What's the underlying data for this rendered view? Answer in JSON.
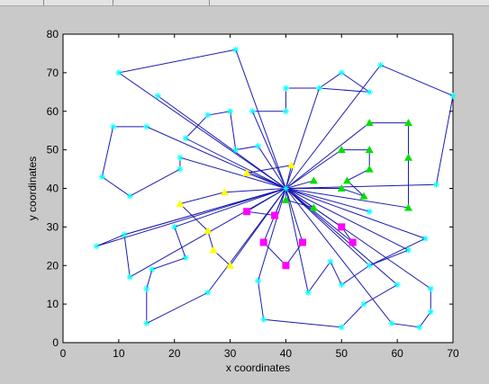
{
  "chart_data": {
    "type": "scatter",
    "title": "",
    "xlabel": "x coordinates",
    "ylabel": "y coordinates",
    "xlim": [
      0,
      70
    ],
    "ylim": [
      0,
      80
    ],
    "xticks": [
      "0",
      "10",
      "20",
      "30",
      "40",
      "50",
      "60",
      "70"
    ],
    "yticks": [
      "0",
      "10",
      "20",
      "30",
      "40",
      "50",
      "60",
      "70",
      "80"
    ],
    "grid": false,
    "legend": "none",
    "colors": {
      "route": "#1b1bb0",
      "customer": "#00ffff",
      "triangle_green": "#00e000",
      "triangle_yellow": "#ffff00",
      "square": "#ff00ff",
      "background": "#c9c9c9",
      "plot_bg": "#ffffff"
    },
    "depot": {
      "x": 40,
      "y": 40
    },
    "customers": [
      {
        "x": 10,
        "y": 70
      },
      {
        "x": 31,
        "y": 76
      },
      {
        "x": 17,
        "y": 64
      },
      {
        "x": 40,
        "y": 66
      },
      {
        "x": 46,
        "y": 66
      },
      {
        "x": 50,
        "y": 70
      },
      {
        "x": 55,
        "y": 65
      },
      {
        "x": 57,
        "y": 72
      },
      {
        "x": 70,
        "y": 64
      },
      {
        "x": 67,
        "y": 41
      },
      {
        "x": 26,
        "y": 59
      },
      {
        "x": 30,
        "y": 60
      },
      {
        "x": 22,
        "y": 53
      },
      {
        "x": 31,
        "y": 50
      },
      {
        "x": 35,
        "y": 51
      },
      {
        "x": 34,
        "y": 60
      },
      {
        "x": 40,
        "y": 60
      },
      {
        "x": 9,
        "y": 56
      },
      {
        "x": 15,
        "y": 56
      },
      {
        "x": 7,
        "y": 43
      },
      {
        "x": 12,
        "y": 38
      },
      {
        "x": 21,
        "y": 48
      },
      {
        "x": 21,
        "y": 45
      },
      {
        "x": 6,
        "y": 25
      },
      {
        "x": 11,
        "y": 28
      },
      {
        "x": 12,
        "y": 17
      },
      {
        "x": 20,
        "y": 30
      },
      {
        "x": 22,
        "y": 22
      },
      {
        "x": 16,
        "y": 19
      },
      {
        "x": 15,
        "y": 14
      },
      {
        "x": 15,
        "y": 5
      },
      {
        "x": 26,
        "y": 13
      },
      {
        "x": 35,
        "y": 16
      },
      {
        "x": 36,
        "y": 6
      },
      {
        "x": 44,
        "y": 13
      },
      {
        "x": 48,
        "y": 21
      },
      {
        "x": 50,
        "y": 15
      },
      {
        "x": 50,
        "y": 4
      },
      {
        "x": 54,
        "y": 10
      },
      {
        "x": 55,
        "y": 20
      },
      {
        "x": 55,
        "y": 34
      },
      {
        "x": 62,
        "y": 24
      },
      {
        "x": 65,
        "y": 27
      },
      {
        "x": 60,
        "y": 15
      },
      {
        "x": 59,
        "y": 5
      },
      {
        "x": 64,
        "y": 4
      },
      {
        "x": 66,
        "y": 8
      },
      {
        "x": 66,
        "y": 14
      }
    ],
    "triangles_green": [
      {
        "x": 55,
        "y": 57
      },
      {
        "x": 62,
        "y": 57
      },
      {
        "x": 50,
        "y": 50
      },
      {
        "x": 55,
        "y": 50
      },
      {
        "x": 62,
        "y": 48
      },
      {
        "x": 55,
        "y": 45
      },
      {
        "x": 45,
        "y": 42
      },
      {
        "x": 51,
        "y": 42
      },
      {
        "x": 50,
        "y": 40
      },
      {
        "x": 54,
        "y": 38
      },
      {
        "x": 40,
        "y": 37
      },
      {
        "x": 45,
        "y": 35
      },
      {
        "x": 62,
        "y": 35
      }
    ],
    "triangles_yellow": [
      {
        "x": 41,
        "y": 46
      },
      {
        "x": 33,
        "y": 44
      },
      {
        "x": 29,
        "y": 39
      },
      {
        "x": 21,
        "y": 36
      },
      {
        "x": 26,
        "y": 29
      },
      {
        "x": 27,
        "y": 24
      },
      {
        "x": 30,
        "y": 20
      }
    ],
    "squares": [
      {
        "x": 33,
        "y": 34
      },
      {
        "x": 38,
        "y": 33
      },
      {
        "x": 36,
        "y": 26
      },
      {
        "x": 40,
        "y": 20
      },
      {
        "x": 43,
        "y": 26
      },
      {
        "x": 50,
        "y": 30
      },
      {
        "x": 52,
        "y": 26
      }
    ],
    "routes": [
      [
        [
          40,
          40
        ],
        [
          31,
          76
        ],
        [
          10,
          70
        ],
        [
          40,
          40
        ]
      ],
      [
        [
          40,
          40
        ],
        [
          17,
          64
        ],
        [
          40,
          40
        ]
      ],
      [
        [
          40,
          40
        ],
        [
          22,
          53
        ],
        [
          26,
          59
        ],
        [
          30,
          60
        ],
        [
          31,
          50
        ],
        [
          35,
          51
        ],
        [
          40,
          40
        ]
      ],
      [
        [
          40,
          40
        ],
        [
          34,
          60
        ],
        [
          40,
          60
        ],
        [
          40,
          66
        ],
        [
          46,
          66
        ],
        [
          50,
          70
        ],
        [
          55,
          65
        ],
        [
          46,
          66
        ],
        [
          40,
          40
        ]
      ],
      [
        [
          40,
          40
        ],
        [
          57,
          72
        ],
        [
          70,
          64
        ],
        [
          67,
          41
        ],
        [
          40,
          40
        ]
      ],
      [
        [
          40,
          40
        ],
        [
          15,
          56
        ],
        [
          9,
          56
        ],
        [
          7,
          43
        ],
        [
          12,
          38
        ],
        [
          21,
          45
        ],
        [
          21,
          48
        ],
        [
          40,
          40
        ]
      ],
      [
        [
          40,
          40
        ],
        [
          6,
          25
        ],
        [
          11,
          28
        ],
        [
          40,
          40
        ]
      ],
      [
        [
          40,
          40
        ],
        [
          11,
          28
        ],
        [
          12,
          17
        ],
        [
          40,
          40
        ]
      ],
      [
        [
          40,
          40
        ],
        [
          20,
          30
        ],
        [
          22,
          22
        ],
        [
          16,
          19
        ],
        [
          15,
          14
        ],
        [
          15,
          5
        ],
        [
          26,
          13
        ],
        [
          40,
          40
        ]
      ],
      [
        [
          40,
          40
        ],
        [
          35,
          16
        ],
        [
          36,
          6
        ],
        [
          50,
          4
        ],
        [
          54,
          10
        ],
        [
          60,
          15
        ],
        [
          40,
          40
        ]
      ],
      [
        [
          40,
          40
        ],
        [
          44,
          13
        ],
        [
          48,
          21
        ],
        [
          50,
          15
        ],
        [
          55,
          20
        ],
        [
          65,
          27
        ],
        [
          40,
          40
        ]
      ],
      [
        [
          40,
          40
        ],
        [
          62,
          24
        ],
        [
          55,
          20
        ],
        [
          40,
          40
        ]
      ],
      [
        [
          40,
          40
        ],
        [
          59,
          5
        ],
        [
          64,
          4
        ],
        [
          66,
          8
        ],
        [
          66,
          14
        ],
        [
          40,
          40
        ]
      ],
      [
        [
          40,
          40
        ],
        [
          55,
          34
        ],
        [
          40,
          40
        ]
      ],
      [
        [
          40,
          40
        ],
        [
          55,
          57
        ],
        [
          62,
          57
        ],
        [
          62,
          48
        ],
        [
          62,
          35
        ],
        [
          40,
          40
        ]
      ],
      [
        [
          40,
          40
        ],
        [
          50,
          50
        ],
        [
          55,
          50
        ],
        [
          55,
          45
        ],
        [
          51,
          42
        ],
        [
          54,
          38
        ],
        [
          50,
          40
        ],
        [
          40,
          40
        ]
      ],
      [
        [
          40,
          40
        ],
        [
          45,
          42
        ],
        [
          40,
          40
        ]
      ],
      [
        [
          40,
          40
        ],
        [
          45,
          35
        ],
        [
          40,
          37
        ],
        [
          40,
          40
        ]
      ],
      [
        [
          40,
          40
        ],
        [
          41,
          46
        ],
        [
          33,
          44
        ],
        [
          40,
          40
        ]
      ],
      [
        [
          40,
          40
        ],
        [
          29,
          39
        ],
        [
          21,
          36
        ],
        [
          26,
          29
        ],
        [
          27,
          24
        ],
        [
          30,
          20
        ],
        [
          40,
          40
        ]
      ],
      [
        [
          40,
          40
        ],
        [
          33,
          34
        ],
        [
          38,
          33
        ],
        [
          40,
          40
        ]
      ],
      [
        [
          40,
          40
        ],
        [
          36,
          26
        ],
        [
          40,
          20
        ],
        [
          43,
          26
        ],
        [
          40,
          40
        ]
      ],
      [
        [
          40,
          40
        ],
        [
          50,
          30
        ],
        [
          52,
          26
        ],
        [
          40,
          40
        ]
      ]
    ]
  }
}
